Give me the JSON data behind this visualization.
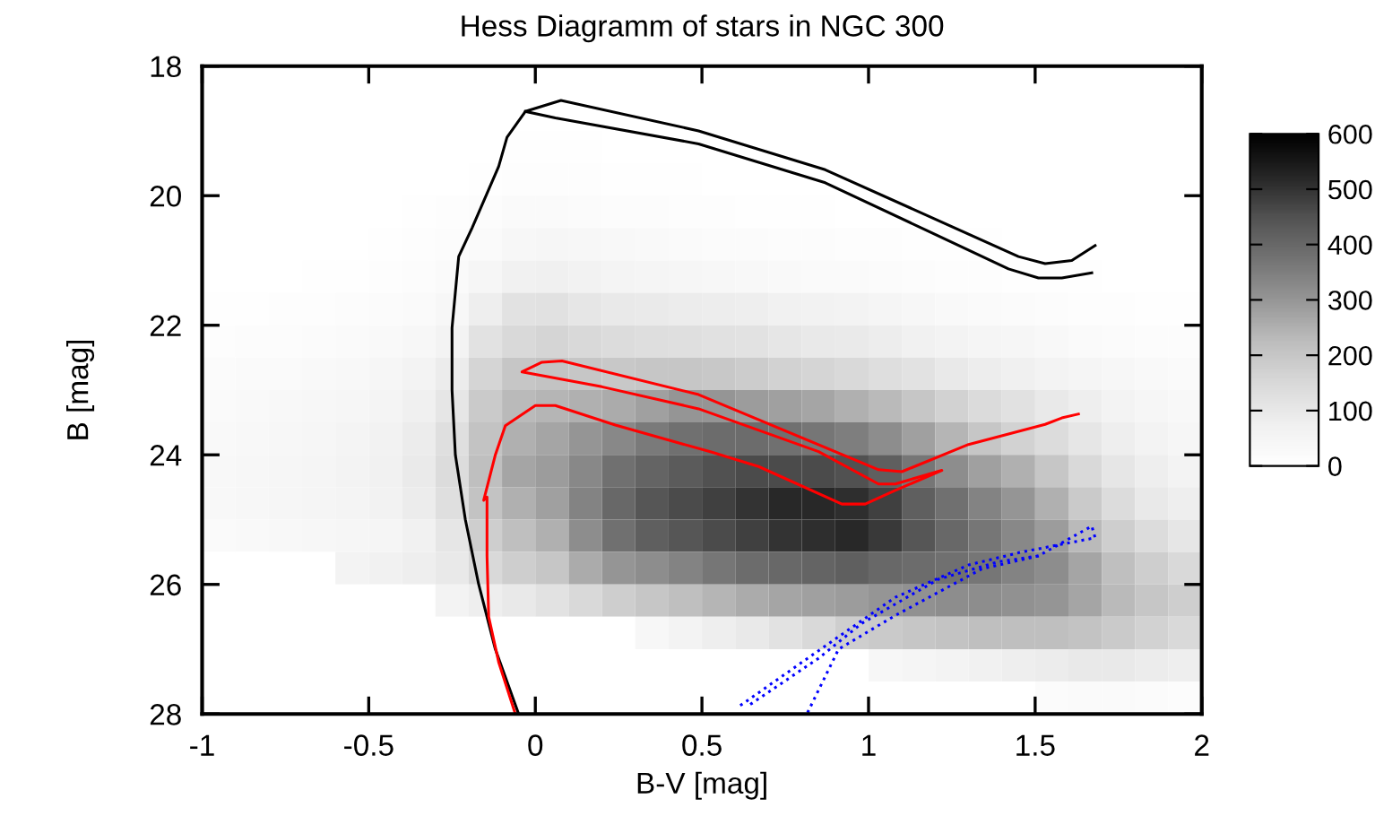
{
  "chart_data": {
    "type": "heatmap",
    "title": "Hess Diagramm of stars in NGC 300",
    "xlabel": "B-V [mag]",
    "ylabel": "B [mag]",
    "xlim": [
      -1,
      2
    ],
    "xticks": [
      -1,
      -0.5,
      0,
      0.5,
      1,
      1.5,
      2
    ],
    "ylim": [
      28,
      18
    ],
    "yticks": [
      18,
      20,
      22,
      24,
      26,
      28
    ],
    "clim": [
      0,
      600
    ],
    "cticks": [
      0,
      100,
      200,
      300,
      400,
      500,
      600
    ],
    "x": [
      -0.95,
      -0.85,
      -0.75,
      -0.65,
      -0.55,
      -0.45,
      -0.35,
      -0.25,
      -0.15,
      -0.05,
      0.05,
      0.15,
      0.25,
      0.35,
      0.45,
      0.55,
      0.65,
      0.75,
      0.85,
      0.95,
      1.05,
      1.15,
      1.25,
      1.35,
      1.45,
      1.55,
      1.65,
      1.75,
      1.85,
      1.95
    ],
    "y": [
      18.25,
      18.75,
      19.25,
      19.75,
      20.25,
      20.75,
      21.25,
      21.75,
      22.25,
      22.75,
      23.25,
      23.75,
      24.25,
      24.75,
      25.25,
      25.75,
      26.25,
      26.75,
      27.25,
      27.75
    ],
    "cells": [
      [
        0,
        0,
        0,
        0,
        0,
        0,
        0,
        0,
        0,
        0,
        0,
        0,
        0,
        0,
        0,
        0,
        0,
        0,
        0,
        0,
        0,
        0,
        0,
        0,
        0,
        0,
        0,
        0,
        0,
        0
      ],
      [
        0,
        0,
        0,
        0,
        0,
        0,
        0,
        0,
        0,
        0,
        0,
        0,
        0,
        0,
        0,
        0,
        0,
        0,
        0,
        0,
        0,
        0,
        0,
        0,
        0,
        0,
        0,
        0,
        0,
        0
      ],
      [
        0,
        0,
        0,
        0,
        0,
        0,
        0,
        0,
        2,
        5,
        5,
        5,
        3,
        2,
        0,
        0,
        0,
        0,
        0,
        0,
        0,
        0,
        0,
        0,
        0,
        0,
        0,
        0,
        0,
        0
      ],
      [
        0,
        0,
        0,
        0,
        0,
        0,
        2,
        4,
        8,
        12,
        12,
        10,
        8,
        6,
        5,
        4,
        3,
        2,
        0,
        0,
        0,
        0,
        0,
        0,
        0,
        0,
        0,
        0,
        0,
        0
      ],
      [
        0,
        0,
        0,
        0,
        2,
        4,
        6,
        10,
        15,
        25,
        25,
        20,
        18,
        15,
        12,
        10,
        8,
        6,
        5,
        4,
        3,
        2,
        0,
        0,
        0,
        0,
        0,
        0,
        0,
        0
      ],
      [
        0,
        0,
        0,
        2,
        4,
        6,
        10,
        15,
        25,
        40,
        45,
        40,
        35,
        30,
        25,
        22,
        20,
        18,
        15,
        12,
        10,
        8,
        6,
        5,
        4,
        3,
        2,
        0,
        0,
        0
      ],
      [
        0,
        2,
        4,
        6,
        8,
        12,
        18,
        25,
        45,
        70,
        75,
        65,
        55,
        50,
        45,
        40,
        35,
        30,
        28,
        25,
        20,
        16,
        12,
        10,
        8,
        6,
        5,
        4,
        3,
        2
      ],
      [
        5,
        8,
        10,
        12,
        15,
        20,
        28,
        40,
        80,
        120,
        125,
        110,
        100,
        95,
        90,
        85,
        80,
        70,
        65,
        60,
        50,
        40,
        30,
        25,
        20,
        15,
        12,
        10,
        8,
        6
      ],
      [
        12,
        15,
        18,
        20,
        25,
        30,
        40,
        60,
        120,
        150,
        160,
        150,
        140,
        135,
        130,
        125,
        120,
        110,
        100,
        95,
        85,
        70,
        60,
        50,
        45,
        35,
        28,
        22,
        18,
        15
      ],
      [
        20,
        25,
        28,
        30,
        35,
        45,
        60,
        90,
        160,
        200,
        210,
        200,
        195,
        200,
        200,
        195,
        185,
        170,
        160,
        150,
        135,
        120,
        100,
        85,
        75,
        60,
        50,
        40,
        32,
        25
      ],
      [
        25,
        30,
        35,
        40,
        45,
        55,
        75,
        110,
        190,
        230,
        240,
        250,
        260,
        280,
        300,
        300,
        290,
        280,
        270,
        250,
        230,
        200,
        170,
        145,
        125,
        100,
        80,
        60,
        45,
        35
      ],
      [
        30,
        35,
        40,
        45,
        55,
        65,
        90,
        130,
        210,
        250,
        270,
        300,
        330,
        360,
        380,
        390,
        390,
        380,
        370,
        350,
        320,
        280,
        240,
        200,
        170,
        140,
        110,
        80,
        60,
        45
      ],
      [
        35,
        40,
        45,
        50,
        60,
        70,
        95,
        140,
        220,
        270,
        290,
        330,
        380,
        410,
        430,
        450,
        460,
        460,
        460,
        450,
        420,
        370,
        320,
        280,
        250,
        200,
        150,
        110,
        80,
        60
      ],
      [
        35,
        40,
        45,
        50,
        55,
        65,
        90,
        130,
        210,
        250,
        280,
        340,
        400,
        440,
        460,
        480,
        500,
        520,
        520,
        510,
        480,
        420,
        380,
        340,
        300,
        250,
        190,
        140,
        100,
        80
      ],
      [
        25,
        30,
        35,
        40,
        45,
        50,
        70,
        110,
        180,
        220,
        250,
        320,
        380,
        420,
        440,
        460,
        480,
        500,
        510,
        520,
        490,
        440,
        400,
        370,
        330,
        290,
        230,
        180,
        140,
        110
      ],
      [
        0,
        0,
        0,
        0,
        60,
        70,
        80,
        100,
        150,
        180,
        200,
        260,
        300,
        320,
        340,
        370,
        390,
        400,
        410,
        420,
        400,
        390,
        380,
        370,
        340,
        320,
        270,
        220,
        180,
        150
      ],
      [
        0,
        0,
        0,
        0,
        0,
        0,
        0,
        60,
        80,
        100,
        120,
        150,
        180,
        200,
        220,
        240,
        260,
        270,
        280,
        290,
        300,
        310,
        320,
        320,
        310,
        300,
        270,
        230,
        200,
        180
      ],
      [
        0,
        0,
        0,
        0,
        0,
        0,
        0,
        0,
        0,
        0,
        0,
        0,
        0,
        40,
        60,
        80,
        100,
        120,
        150,
        180,
        190,
        200,
        210,
        220,
        220,
        220,
        210,
        190,
        170,
        150
      ],
      [
        0,
        0,
        0,
        0,
        0,
        0,
        0,
        0,
        0,
        0,
        0,
        0,
        0,
        0,
        0,
        0,
        0,
        0,
        0,
        0,
        40,
        50,
        60,
        70,
        80,
        90,
        100,
        100,
        90,
        80
      ],
      [
        0,
        0,
        0,
        0,
        0,
        0,
        0,
        0,
        0,
        0,
        0,
        0,
        0,
        0,
        0,
        0,
        0,
        0,
        0,
        0,
        0,
        0,
        0,
        0,
        0,
        20,
        25,
        25,
        20,
        15
      ]
    ],
    "series": [
      {
        "type": "line",
        "color": "#000000",
        "line_style": "solid",
        "x": [
          -0.05,
          -0.12,
          -0.17,
          -0.21,
          -0.24,
          -0.25,
          -0.25,
          -0.23,
          -0.19,
          -0.11,
          -0.085,
          -0.03,
          0.077,
          0.49,
          0.87,
          1.45,
          1.53,
          1.61,
          1.68
        ],
        "values": [
          28,
          27,
          26,
          25,
          24,
          23,
          22.04,
          20.94,
          20.5,
          19.55,
          19.1,
          18.7,
          18.53,
          19.0,
          19.6,
          20.94,
          21.05,
          21.0,
          20.77
        ]
      },
      {
        "type": "line",
        "color": "#000000",
        "line_style": "solid",
        "x": [
          -0.03,
          0.06,
          0.49,
          0.87,
          1.42,
          1.51,
          1.58,
          1.67
        ],
        "values": [
          18.7,
          18.8,
          19.2,
          19.8,
          21.13,
          21.27,
          21.27,
          21.19
        ]
      },
      {
        "type": "line",
        "color": "#ff0000",
        "line_style": "solid",
        "x": [
          -0.06,
          -0.11,
          -0.14,
          -0.145,
          -0.145,
          -0.155,
          -0.12,
          -0.09,
          0.0,
          0.06,
          0.24,
          0.53,
          0.67,
          0.92,
          0.99,
          1.08,
          1.22,
          1.08,
          1.03,
          0.85,
          0.49,
          0.2,
          -0.04,
          0.02,
          0.08,
          0.49,
          1.03,
          1.1,
          1.3,
          1.53,
          1.58,
          1.63
        ],
        "values": [
          28,
          27.2,
          26.5,
          25.56,
          24.65,
          24.7,
          24.0,
          23.55,
          23.24,
          23.24,
          23.54,
          23.96,
          24.18,
          24.76,
          24.76,
          24.55,
          24.24,
          24.45,
          24.45,
          23.95,
          23.29,
          22.95,
          22.72,
          22.57,
          22.55,
          23.07,
          24.23,
          24.26,
          23.84,
          23.53,
          23.43,
          23.37
        ]
      },
      {
        "type": "line",
        "color": "#0000ff",
        "line_style": "dotted",
        "x": [
          0.615,
          0.87,
          1.08,
          1.3,
          1.46,
          1.68,
          1.67,
          1.51,
          1.34,
          1.08,
          0.91,
          0.815
        ],
        "values": [
          27.87,
          26.95,
          26.2,
          25.7,
          25.5,
          25.28,
          25.1,
          25.56,
          25.76,
          26.48,
          27.0,
          28
        ]
      },
      {
        "type": "line",
        "color": "#0000ff",
        "line_style": "dotted",
        "x": [
          1.51,
          1.39,
          1.21,
          0.98,
          0.85,
          0.64
        ],
        "values": [
          25.56,
          25.65,
          25.92,
          26.6,
          27.14,
          27.87
        ]
      }
    ]
  }
}
